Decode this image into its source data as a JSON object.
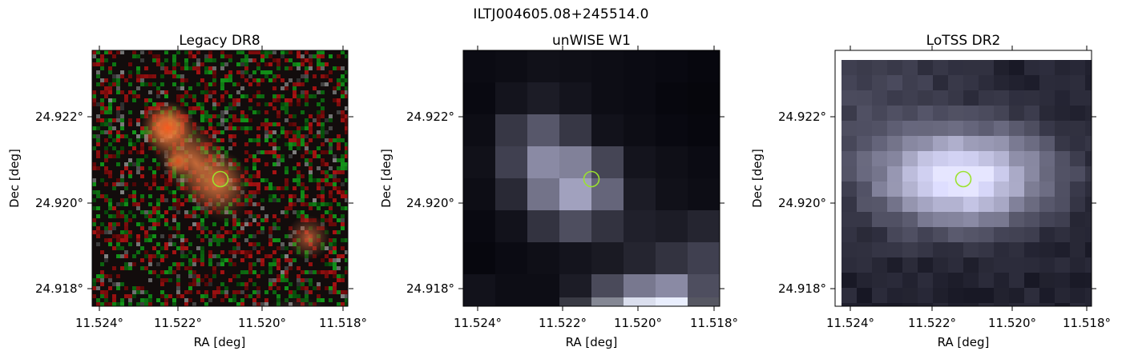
{
  "figure": {
    "title": "ILTJ004605.08+245514.0"
  },
  "panels": [
    {
      "title": "Legacy DR8",
      "xlabel": "RA [deg]",
      "ylabel": "Dec [deg]",
      "x_ticks": [
        "11.524°",
        "11.522°",
        "11.520°",
        "11.518°"
      ],
      "y_ticks": [
        "24.922°",
        "24.920°",
        "24.918°"
      ]
    },
    {
      "title": "unWISE W1",
      "xlabel": "RA [deg]",
      "ylabel": "Dec [deg]",
      "x_ticks": [
        "11.524°",
        "11.522°",
        "11.520°",
        "11.518°"
      ],
      "y_ticks": [
        "24.922°",
        "24.920°",
        "24.918°"
      ]
    },
    {
      "title": "LoTSS DR2",
      "xlabel": "RA [deg]",
      "ylabel": "Dec [deg]",
      "x_ticks": [
        "11.524°",
        "11.522°",
        "11.520°",
        "11.518°"
      ],
      "y_ticks": [
        "24.922°",
        "24.920°",
        "24.918°"
      ]
    }
  ],
  "marker": {
    "color": "#9be22e",
    "shape": "circle"
  }
}
